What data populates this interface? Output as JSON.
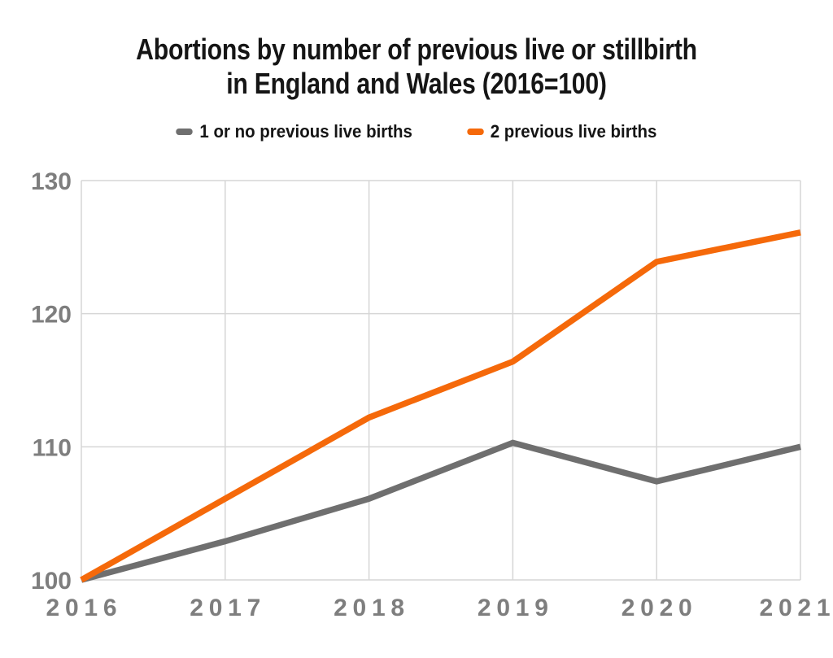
{
  "page": {
    "background": "#ffffff"
  },
  "chart_data": {
    "type": "line",
    "title": "Abortions by number of previous live or stillbirth in England and Wales (2016=100)",
    "title_lines": [
      "Abortions by number of previous live or stillbirth",
      "in England and Wales (2016=100)"
    ],
    "categories": [
      "2016",
      "2017",
      "2018",
      "2019",
      "2020",
      "2021"
    ],
    "series": [
      {
        "name": "1 or no previous live births",
        "color": "#6f6f6f",
        "values": [
          100,
          102.9,
          106.1,
          110.3,
          107.4,
          110
        ]
      },
      {
        "name": "2 previous live births",
        "color": "#f5690a",
        "values": [
          100,
          106.1,
          112.2,
          116.4,
          123.9,
          126.1
        ]
      }
    ],
    "xlabel": "",
    "ylabel": "",
    "ylim": [
      100,
      130
    ],
    "yticks": [
      100,
      110,
      120,
      130
    ],
    "grid": true,
    "legend_position": "top",
    "axis_text_color": "#7e7e7e",
    "grid_color": "#d6d6d6",
    "line_width": 7.5
  }
}
